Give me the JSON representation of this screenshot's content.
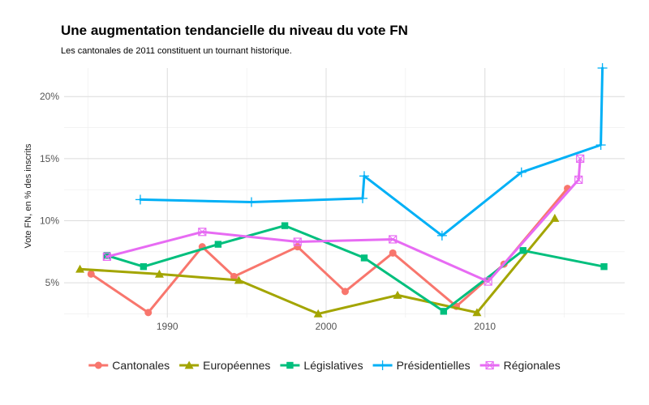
{
  "chart_data": {
    "type": "line",
    "title": "Une augmentation tendancielle du niveau du vote FN",
    "subtitle": "Les cantonales de 2011 constituent un tournant historique.",
    "xlabel": "",
    "ylabel": "Vote FN, en % des inscrits",
    "xlim": [
      1983.5,
      2018.8
    ],
    "ylim": [
      2.2,
      22.3
    ],
    "x_ticks": [
      1990,
      2000,
      2010
    ],
    "x_tick_labels": [
      "1990",
      "2000",
      "2010"
    ],
    "y_ticks": [
      5,
      10,
      15,
      20
    ],
    "y_tick_labels": [
      "5%",
      "10%",
      "15%",
      "20%"
    ],
    "grid": true,
    "legend_position": "bottom",
    "series": [
      {
        "name": "Cantonales",
        "color": "#F8766D",
        "marker": "circle",
        "x": [
          1985.2,
          1988.8,
          1992.2,
          1994.2,
          1998.2,
          2001.2,
          2004.2,
          2008.2,
          2011.2,
          2015.2
        ],
        "y": [
          5.7,
          2.6,
          7.9,
          5.5,
          7.9,
          4.3,
          7.4,
          3.1,
          6.5,
          12.6
        ]
      },
      {
        "name": "Européennes",
        "color": "#A3A500",
        "marker": "triangle",
        "x": [
          1984.5,
          1989.5,
          1994.5,
          1999.5,
          2004.5,
          2009.5,
          2014.4
        ],
        "y": [
          6.1,
          5.7,
          5.2,
          2.5,
          4.0,
          2.6,
          10.2
        ]
      },
      {
        "name": "Législatives",
        "color": "#00BF7D",
        "marker": "square",
        "x": [
          1986.2,
          1988.5,
          1993.2,
          1997.4,
          2002.4,
          2007.4,
          2012.4,
          2017.5
        ],
        "y": [
          7.2,
          6.3,
          8.1,
          9.6,
          7.0,
          2.7,
          7.6,
          6.3
        ]
      },
      {
        "name": "Présidentielles",
        "color": "#00B0F6",
        "marker": "cross",
        "x": [
          1988.3,
          1995.3,
          2002.3,
          2002.4,
          2007.3,
          2012.3,
          2017.3,
          2017.4
        ],
        "y": [
          11.7,
          11.5,
          11.8,
          13.6,
          8.8,
          13.9,
          16.1,
          22.3
        ]
      },
      {
        "name": "Régionales",
        "color": "#E76BF3",
        "marker": "square-x",
        "x": [
          1986.2,
          1992.2,
          1998.2,
          2004.2,
          2010.2,
          2015.9,
          2016.0
        ],
        "y": [
          7.1,
          9.1,
          8.3,
          8.5,
          5.1,
          13.3,
          15.0
        ]
      }
    ]
  }
}
